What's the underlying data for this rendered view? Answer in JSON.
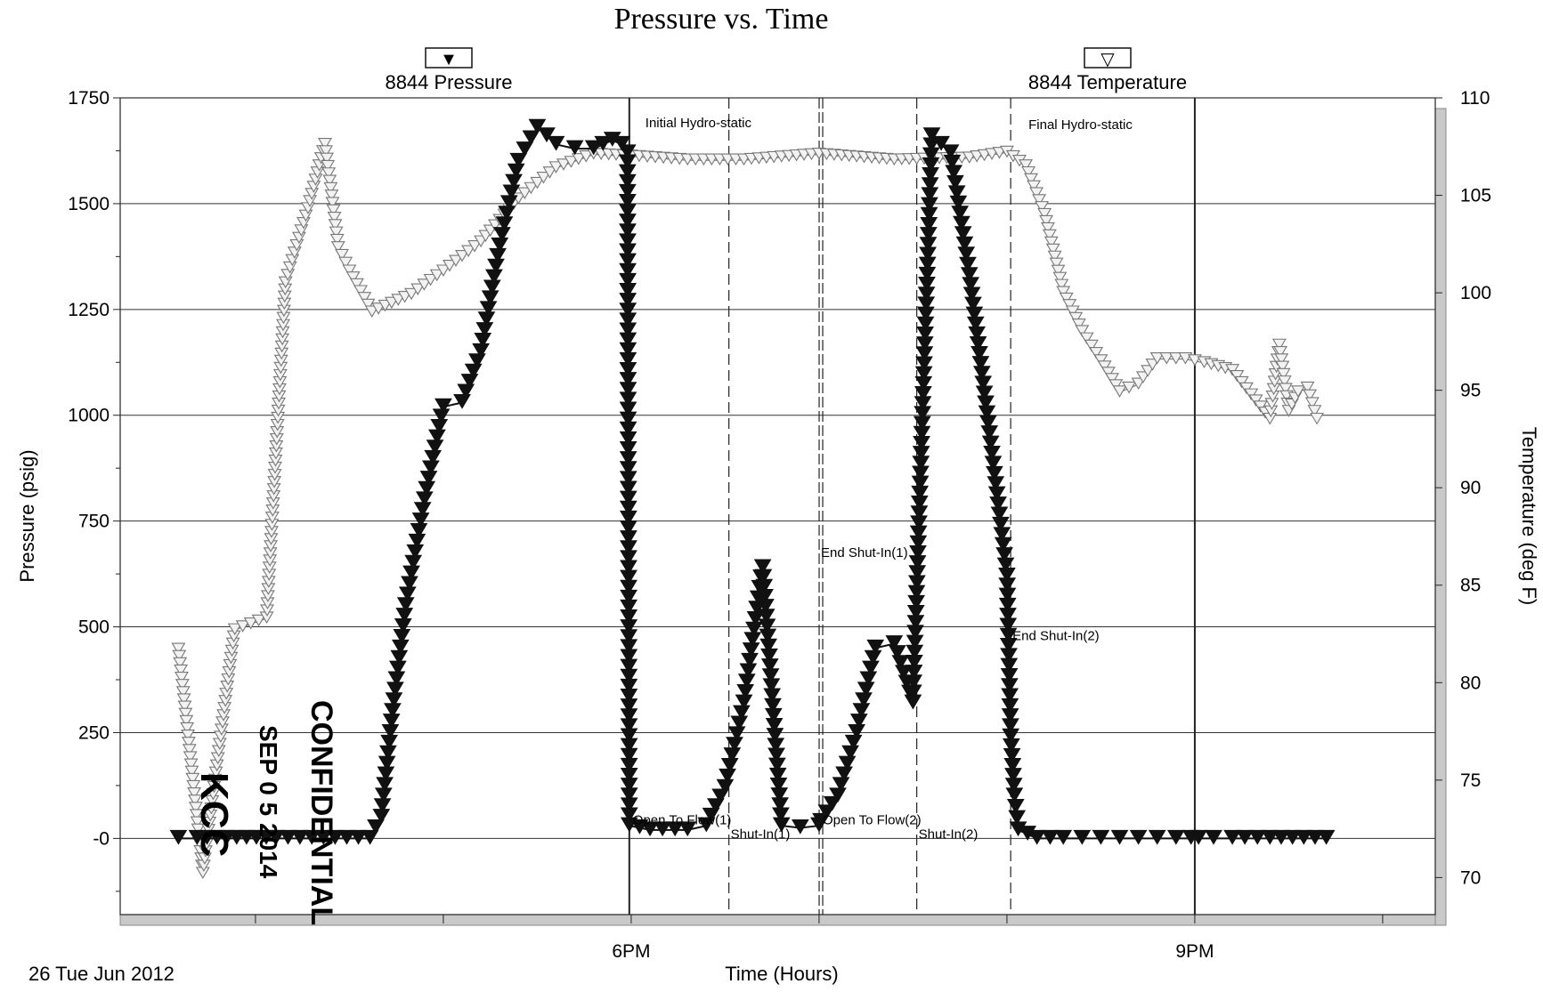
{
  "chart_data": {
    "type": "line",
    "title": "Pressure vs. Time",
    "xlabel": "Time (Hours)",
    "ylabel_left": "Pressure (psig)",
    "ylabel_right": "Temperature (deg F)",
    "x_ticks": [
      "6PM",
      "9PM"
    ],
    "x_tick_hours": [
      18,
      21
    ],
    "xlim_hours": [
      15.28,
      22.28
    ],
    "ylim_left": [
      -180,
      1750
    ],
    "ylim_right": [
      68.1,
      110
    ],
    "y_ticks_left": [
      1750,
      1500,
      1250,
      1000,
      750,
      500,
      250,
      0
    ],
    "y_tick_labels_left": [
      "1750",
      "1500",
      "1250",
      "1000",
      "750",
      "500",
      "250",
      "-0"
    ],
    "y_ticks_right": [
      110,
      105,
      100,
      95,
      90,
      85,
      80,
      75,
      70
    ],
    "y_tick_labels_right": [
      "110",
      "105",
      "100",
      "95",
      "90",
      "85",
      "80",
      "75",
      "70"
    ],
    "grid": true,
    "legend_position": "top",
    "series": [
      {
        "name": "8844 Pressure",
        "axis": "left",
        "marker": "filled-down-triangle",
        "color": "#111111",
        "x": [
          15.59,
          15.69,
          16.11,
          16.3,
          16.61,
          16.67,
          16.73,
          16.8,
          16.9,
          17.0,
          17.1,
          17.2,
          17.3,
          17.4,
          17.5,
          17.6,
          17.7,
          17.8,
          17.9,
          17.95,
          17.98,
          17.99,
          18.1,
          18.3,
          18.4,
          18.5,
          18.6,
          18.7,
          18.8,
          18.9,
          19.0,
          19.01,
          19.1,
          19.2,
          19.3,
          19.4,
          19.5,
          19.6,
          19.7,
          19.8,
          19.9,
          20.0,
          20.02,
          20.04,
          20.06,
          20.16,
          20.3,
          20.4,
          20.5,
          20.6,
          20.7,
          20.8,
          20.9,
          20.98,
          21.02,
          21.1,
          21.2,
          21.4,
          21.7
        ],
        "y": [
          0,
          0,
          0,
          0,
          0,
          50,
          300,
          550,
          800,
          1020,
          1030,
          1150,
          1400,
          1600,
          1680,
          1640,
          1630,
          1630,
          1650,
          1640,
          1620,
          30,
          20,
          20,
          30,
          120,
          320,
          640,
          30,
          25,
          30,
          40,
          100,
          250,
          450,
          460,
          320,
          1660,
          1620,
          1330,
          980,
          620,
          240,
          100,
          20,
          0,
          0,
          0,
          0,
          0,
          0,
          0,
          0,
          0,
          0,
          0,
          0,
          0,
          0
        ]
      },
      {
        "name": "8844 Temperature",
        "axis": "right",
        "marker": "hollow-down-triangle",
        "color": "#777777",
        "x": [
          15.59,
          15.72,
          15.89,
          16.06,
          16.16,
          16.28,
          16.37,
          16.44,
          16.5,
          16.62,
          16.83,
          17.0,
          17.2,
          17.4,
          17.6,
          17.8,
          18.0,
          18.3,
          18.6,
          19.0,
          19.4,
          19.8,
          20.0,
          20.1,
          20.2,
          20.3,
          20.4,
          20.5,
          20.6,
          20.7,
          20.8,
          20.95,
          21.05,
          21.2,
          21.4,
          21.45,
          21.5,
          21.55,
          21.6,
          21.65
        ],
        "y": [
          81.7,
          70.2,
          82.7,
          83.3,
          100.5,
          104.3,
          107.6,
          102.3,
          101.1,
          99.0,
          99.9,
          101.1,
          102.6,
          104.8,
          106.4,
          107.1,
          107.0,
          106.8,
          106.8,
          107.1,
          106.8,
          106.9,
          107.2,
          106.5,
          104.0,
          100.0,
          98.0,
          96.5,
          94.9,
          95.3,
          96.6,
          96.6,
          96.4,
          96.0,
          93.5,
          97.3,
          93.9,
          94.9,
          95.1,
          93.5
        ]
      }
    ],
    "annotations": [
      {
        "text": "Initial Hydro-static",
        "x": 17.99,
        "y": 1660
      },
      {
        "text": "Open To Flow(1)",
        "x": 17.99,
        "y": 25
      },
      {
        "text": "Shut-In(1)",
        "x": 18.52,
        "y": 25
      },
      {
        "text": "End Shut-In(1)",
        "x": 19.01,
        "y": 640
      },
      {
        "text": "Open To Flow(2)",
        "x": 19.01,
        "y": 25
      },
      {
        "text": "Shut-In(2)",
        "x": 19.52,
        "y": 25
      },
      {
        "text": "End Shut-In(2)",
        "x": 20.02,
        "y": 460
      },
      {
        "text": "Final Hydro-static",
        "x": 20.02,
        "y": 1660
      }
    ],
    "event_lines_hours": [
      {
        "x": 17.99,
        "style": "solid"
      },
      {
        "x": 18.52,
        "style": "dashed"
      },
      {
        "x": 19.01,
        "style": "double-dashed"
      },
      {
        "x": 19.52,
        "style": "dashed"
      },
      {
        "x": 20.02,
        "style": "dashed"
      },
      {
        "x": 21.0,
        "style": "solid"
      }
    ]
  },
  "legend": {
    "pressure": {
      "label": "8844 Pressure",
      "symbol": "▼"
    },
    "temperature": {
      "label": "8844 Temperature",
      "symbol": "▽"
    }
  },
  "footer": {
    "date": "26 Tue Jun 2012"
  },
  "stamps": {
    "kcc": "KCC",
    "date": "SEP 0 5 2014",
    "confidential": "CONFIDENTIAL"
  }
}
